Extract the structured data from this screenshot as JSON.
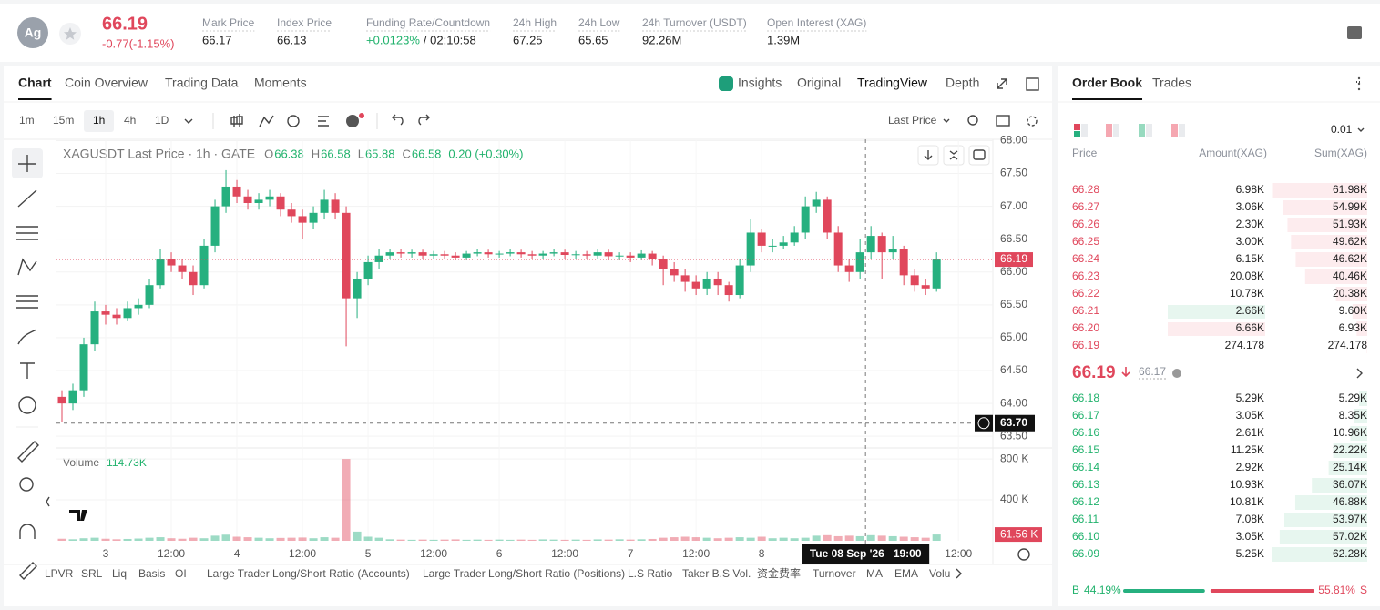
{
  "header": {
    "icon": "Ag",
    "price": "66.19",
    "change": "-0.77(-1.15%)",
    "stats": [
      {
        "label": "Mark Price",
        "value": "66.17"
      },
      {
        "label": "Index Price",
        "value": "66.13"
      },
      {
        "label": "Funding Rate/Countdown",
        "value": "+0.0123%",
        "extra": "/ 02:10:58"
      },
      {
        "label": "24h High",
        "value": "67.25"
      },
      {
        "label": "24h Low",
        "value": "65.65"
      },
      {
        "label": "24h Turnover (USDT)",
        "value": "92.26M"
      },
      {
        "label": "Open Interest (XAG)",
        "value": "1.39M"
      }
    ]
  },
  "tabs": [
    "Chart",
    "Coin Overview",
    "Trading Data",
    "Moments"
  ],
  "views": [
    "Insights",
    "Original",
    "TradingView",
    "Depth"
  ],
  "intervals": [
    "1m",
    "15m",
    "1h",
    "4h",
    "1D"
  ],
  "price_type": "Last Price",
  "legend": {
    "title": "XAGUSDT Last Price · 1h · GATE",
    "ohlc": [
      {
        "label": "O",
        "value": "66.38"
      },
      {
        "label": "H",
        "value": "66.58"
      },
      {
        "label": "L",
        "value": "65.88"
      },
      {
        "label": "C",
        "value": "66.58"
      }
    ],
    "change": "0.20 (+0.30%)"
  },
  "volume_legend": {
    "label": "Volume",
    "value": "114.73K"
  },
  "crosshair": {
    "x": 139,
    "x_label": "Tue 08 Sep '26   19:00",
    "y": 63.7,
    "y_label": "63.70"
  },
  "chart_data": {
    "type": "candlestick",
    "up_color": "#26b07f",
    "down_color": "#e0475c",
    "x": [
      -8,
      -6,
      -4,
      -2,
      0,
      2,
      4,
      6,
      8,
      10,
      12,
      14,
      16,
      18,
      20,
      22,
      24,
      26,
      28,
      30,
      32,
      34,
      36,
      38,
      40,
      42,
      44,
      46,
      48,
      50,
      52,
      54,
      56,
      58,
      60,
      62,
      64,
      66,
      68,
      70,
      72,
      74,
      76,
      78,
      80,
      82,
      84,
      86,
      88,
      90,
      92,
      94,
      96,
      98,
      100,
      102,
      104,
      106,
      108,
      110,
      112,
      114,
      116,
      118,
      120,
      122,
      124,
      126,
      128,
      130,
      132,
      134,
      136,
      138,
      140,
      142,
      144,
      146,
      148,
      150,
      152
    ],
    "open": [
      64.1,
      64.0,
      64.2,
      64.9,
      65.4,
      65.35,
      65.3,
      65.45,
      65.5,
      65.8,
      66.2,
      66.1,
      66.0,
      65.8,
      66.4,
      67.0,
      67.3,
      67.15,
      67.05,
      67.1,
      67.15,
      66.95,
      66.85,
      66.75,
      66.9,
      67.1,
      66.9,
      65.6,
      65.9,
      66.15,
      66.25,
      66.3,
      66.28,
      66.3,
      66.25,
      66.27,
      66.25,
      66.22,
      66.28,
      66.3,
      66.27,
      66.28,
      66.3,
      66.27,
      66.25,
      66.28,
      66.3,
      66.26,
      66.27,
      66.25,
      66.3,
      66.24,
      66.25,
      66.22,
      66.28,
      66.2,
      66.05,
      65.95,
      65.85,
      65.75,
      65.9,
      65.8,
      65.65,
      66.1,
      66.6,
      66.4,
      66.4,
      66.45,
      66.6,
      67.0,
      67.1,
      66.6,
      66.1,
      66.0,
      66.3,
      66.55,
      66.3,
      66.35,
      65.95,
      65.8,
      65.75
    ],
    "high": [
      64.2,
      64.3,
      65.0,
      65.55,
      65.5,
      65.45,
      65.55,
      65.6,
      65.9,
      66.35,
      66.3,
      66.2,
      66.1,
      66.5,
      67.1,
      67.55,
      67.4,
      67.25,
      67.2,
      67.25,
      67.2,
      67.05,
      66.95,
      67.0,
      67.25,
      67.2,
      67.0,
      66.0,
      66.25,
      66.35,
      66.35,
      66.35,
      66.34,
      66.34,
      66.32,
      66.32,
      66.3,
      66.32,
      66.35,
      66.34,
      66.32,
      66.35,
      66.34,
      66.32,
      66.32,
      66.35,
      66.34,
      66.32,
      66.32,
      66.35,
      66.34,
      66.3,
      66.3,
      66.33,
      66.32,
      66.25,
      66.15,
      66.05,
      65.95,
      66.0,
      66.0,
      65.85,
      66.2,
      66.8,
      66.65,
      66.5,
      66.55,
      66.7,
      67.15,
      67.22,
      67.15,
      66.7,
      66.2,
      66.5,
      66.7,
      66.6,
      66.55,
      66.4,
      66.05,
      65.9,
      66.3
    ],
    "low": [
      63.72,
      63.9,
      64.1,
      64.8,
      65.2,
      65.2,
      65.25,
      65.35,
      65.45,
      65.75,
      66.0,
      65.9,
      65.65,
      65.75,
      66.3,
      66.9,
      67.05,
      66.95,
      66.95,
      67.0,
      66.85,
      66.75,
      66.5,
      66.65,
      66.8,
      66.8,
      64.87,
      65.3,
      65.8,
      66.05,
      66.2,
      66.22,
      66.22,
      66.2,
      66.2,
      66.2,
      66.18,
      66.18,
      66.24,
      66.22,
      66.22,
      66.24,
      66.22,
      66.2,
      66.2,
      66.24,
      66.2,
      66.2,
      66.2,
      66.2,
      66.18,
      66.18,
      66.15,
      66.18,
      66.1,
      65.8,
      65.85,
      65.7,
      65.65,
      65.65,
      65.65,
      65.55,
      65.6,
      66.0,
      66.3,
      66.3,
      66.35,
      66.4,
      66.5,
      66.9,
      66.5,
      66.0,
      65.85,
      65.9,
      66.2,
      65.9,
      66.2,
      65.8,
      65.7,
      65.65,
      65.7
    ],
    "close": [
      64.0,
      64.2,
      64.9,
      65.4,
      65.35,
      65.3,
      65.45,
      65.5,
      65.8,
      66.2,
      66.1,
      66.0,
      65.8,
      66.4,
      67.0,
      67.3,
      67.15,
      67.05,
      67.1,
      67.15,
      66.95,
      66.85,
      66.75,
      66.9,
      67.1,
      66.9,
      65.6,
      65.9,
      66.15,
      66.25,
      66.3,
      66.28,
      66.3,
      66.25,
      66.27,
      66.25,
      66.22,
      66.28,
      66.3,
      66.27,
      66.28,
      66.3,
      66.27,
      66.25,
      66.28,
      66.3,
      66.26,
      66.27,
      66.25,
      66.3,
      66.24,
      66.25,
      66.22,
      66.28,
      66.2,
      66.05,
      65.95,
      65.85,
      65.75,
      65.9,
      65.8,
      65.65,
      66.1,
      66.6,
      66.4,
      66.4,
      66.45,
      66.6,
      67.0,
      67.1,
      66.6,
      66.1,
      66.0,
      66.3,
      66.55,
      66.3,
      66.35,
      65.95,
      65.8,
      65.75,
      66.19
    ],
    "xlim": [
      -9,
      162.3
    ],
    "xticks": [
      {
        "value": 0,
        "label": "3"
      },
      {
        "value": 12,
        "label": "12:00"
      },
      {
        "value": 24,
        "label": "4"
      },
      {
        "value": 36,
        "label": "12:00"
      },
      {
        "value": 48,
        "label": "5"
      },
      {
        "value": 60,
        "label": "12:00"
      },
      {
        "value": 72,
        "label": "6"
      },
      {
        "value": 84,
        "label": "12:00"
      },
      {
        "value": 96,
        "label": "7"
      },
      {
        "value": 108,
        "label": "12:00"
      },
      {
        "value": 120,
        "label": "8"
      },
      {
        "value": 156,
        "label": "12:00"
      }
    ],
    "ylim": [
      63.35,
      68.02
    ],
    "yticks": [
      {
        "value": 63.5,
        "label": "63.50"
      },
      {
        "value": 64,
        "label": "64.00"
      },
      {
        "value": 64.5,
        "label": "64.50"
      },
      {
        "value": 65,
        "label": "65.00"
      },
      {
        "value": 65.5,
        "label": "65.50"
      },
      {
        "value": 66,
        "label": "66.00"
      },
      {
        "value": 66.5,
        "label": "66.50"
      },
      {
        "value": 67,
        "label": "67.00"
      },
      {
        "value": 67.5,
        "label": "67.50"
      },
      {
        "value": 68,
        "label": "68.00"
      }
    ],
    "last_price": {
      "value": 66.19,
      "label": "66.19"
    },
    "volume": {
      "values": [
        20,
        15,
        25,
        30,
        20,
        15,
        18,
        22,
        30,
        35,
        25,
        20,
        30,
        25,
        50,
        60,
        40,
        35,
        30,
        25,
        28,
        30,
        32,
        25,
        35,
        30,
        800,
        90,
        40,
        30,
        15,
        12,
        10,
        12,
        10,
        12,
        14,
        10,
        12,
        10,
        12,
        10,
        12,
        10,
        14,
        12,
        10,
        12,
        10,
        14,
        12,
        15,
        12,
        15,
        18,
        30,
        35,
        40,
        35,
        30,
        25,
        30,
        35,
        30,
        40,
        25,
        30,
        25,
        30,
        50,
        55,
        45,
        50,
        45,
        55,
        50,
        45,
        40,
        35,
        30,
        61.56
      ],
      "ylim": [
        0,
        890
      ],
      "yticks": [
        {
          "value": 400,
          "label": "400 K"
        },
        {
          "value": 800,
          "label": "800 K"
        }
      ],
      "last_label": "61.56 K"
    }
  },
  "indicators": [
    "LPVR",
    "SRL",
    "Liq",
    "Basis",
    "OI",
    "Large Trader Long/Short Ratio (Accounts)",
    "Large Trader Long/Short Ratio (Positions)",
    "L.S Ratio",
    "Taker B.S Vol.",
    "资金费率",
    "Turnover",
    "MA",
    "EMA",
    "Volu"
  ],
  "order_book": {
    "tabs": [
      "Order Book",
      "Trades"
    ],
    "precision": "0.01",
    "headers": [
      "Price",
      "Amount(XAG)",
      "Sum(XAG)"
    ],
    "asks": [
      [
        "66.28",
        "6.98K",
        "61.98K"
      ],
      [
        "66.27",
        "3.06K",
        "54.99K"
      ],
      [
        "66.26",
        "2.30K",
        "51.93K"
      ],
      [
        "66.25",
        "3.00K",
        "49.62K"
      ],
      [
        "66.24",
        "6.15K",
        "46.62K"
      ],
      [
        "66.23",
        "20.08K",
        "40.46K"
      ],
      [
        "66.22",
        "10.78K",
        "20.38K"
      ],
      [
        "66.21",
        "2.66K",
        "9.60K"
      ],
      [
        "66.20",
        "6.66K",
        "6.93K"
      ],
      [
        "66.19",
        "274.178",
        "274.178"
      ]
    ],
    "mid": {
      "price": "66.19",
      "mark": "66.17"
    },
    "bids": [
      [
        "66.18",
        "5.29K",
        "5.29K"
      ],
      [
        "66.17",
        "3.05K",
        "8.35K"
      ],
      [
        "66.16",
        "2.61K",
        "10.96K"
      ],
      [
        "66.15",
        "11.25K",
        "22.22K"
      ],
      [
        "66.14",
        "2.92K",
        "25.14K"
      ],
      [
        "66.13",
        "10.93K",
        "36.07K"
      ],
      [
        "66.12",
        "10.81K",
        "46.88K"
      ],
      [
        "66.11",
        "7.08K",
        "53.97K"
      ],
      [
        "66.10",
        "3.05K",
        "57.02K"
      ],
      [
        "66.09",
        "5.25K",
        "62.28K"
      ]
    ],
    "ratio": {
      "labels": [
        "B",
        "S"
      ],
      "values": [
        44.19,
        55.81
      ],
      "value_labels": [
        "44.19%",
        "55.81%"
      ]
    }
  }
}
